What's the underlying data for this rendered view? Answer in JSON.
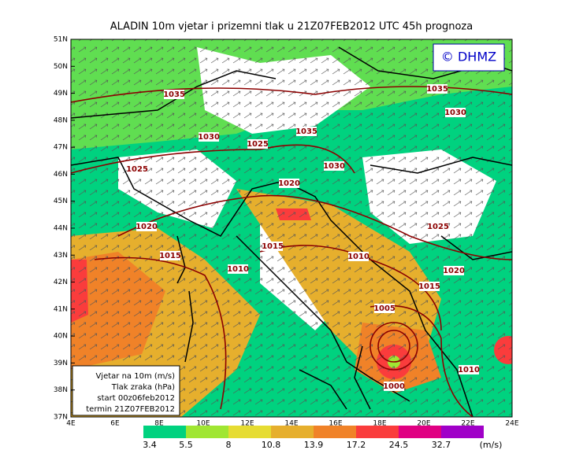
{
  "header": {
    "title": "ALADIN 10m vjetar i prizemni tlak u 21Z07FEB2012 UTC 45h prognoza",
    "logo": "© DHMZ"
  },
  "lat_labels": [
    "51N",
    "50N",
    "49N",
    "48N",
    "47N",
    "46N",
    "45N",
    "44N",
    "43N",
    "42N",
    "41N",
    "40N",
    "39N",
    "38N",
    "37N"
  ],
  "lon_labels": [
    "4E",
    "6E",
    "8E",
    "10E",
    "12E",
    "14E",
    "16E",
    "18E",
    "20E",
    "22E",
    "24E"
  ],
  "isobar_labels": [
    "1035",
    "1035",
    "1030",
    "1030",
    "1035",
    "1025",
    "1030",
    "1025",
    "1020",
    "1020",
    "1025",
    "1015",
    "1015",
    "1010",
    "1010",
    "1020",
    "1015",
    "1005",
    "1010",
    "1000"
  ],
  "info_box": [
    "Vjetar na 10m (m/s)",
    "Tlak zraka (hPa)",
    "start 00z06feb2012",
    "termin 21Z07FEB2012"
  ],
  "colorbar": {
    "labels": [
      "3.4",
      "5.5",
      "8",
      "10.8",
      "13.9",
      "17.2",
      "24.5",
      "32.7"
    ],
    "unit": "(m/s)",
    "colors": [
      "#00d27f",
      "#a0e632",
      "#e6dc32",
      "#e6af2d",
      "#f08228",
      "#fa3c3c",
      "#e00082",
      "#a000c8"
    ]
  }
}
